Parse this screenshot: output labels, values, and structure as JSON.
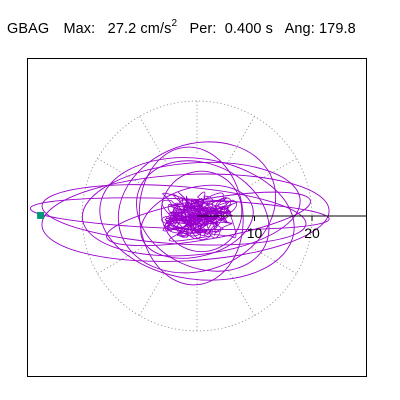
{
  "header": {
    "station": "GBAG",
    "max_label": "Max:",
    "max_value": "27.2 cm/s",
    "max_unit_exponent": "2",
    "per_label": "Per:",
    "per_value": "0.400 s",
    "ang_label": "Ang:",
    "ang_value": "179.8"
  },
  "colors": {
    "trace": "#9900cc",
    "marker": "#009977",
    "axis": "#000000",
    "guide": "#888888",
    "frame": "#000000"
  },
  "chart_data": {
    "type": "scatter",
    "description_mode": "polar particle-motion (orbit) plot of horizontal ground acceleration",
    "units": "cm/s^2",
    "tick_labels": [
      "10",
      "20"
    ],
    "ticks": [
      10,
      20
    ],
    "axis_range": [
      -30,
      30
    ],
    "guide_circle_radius": 20,
    "peak": {
      "value": 27.2,
      "angle_deg": 179.8
    },
    "orbit_ellipses": [
      {
        "a": 26,
        "b": 2.6,
        "tilt": -2,
        "cx": -3,
        "cy": 0.4
      },
      {
        "a": 25,
        "b": 7.5,
        "tilt": 3,
        "cx": -2,
        "cy": -0.3
      },
      {
        "a": 23,
        "b": 5.0,
        "tilt": -4,
        "cx": -4,
        "cy": 0.2
      },
      {
        "a": 19,
        "b": 8.0,
        "tilt": 5,
        "cx": -1,
        "cy": 1.2
      },
      {
        "a": 17,
        "b": 10.5,
        "tilt": -8,
        "cx": 0,
        "cy": -0.5
      },
      {
        "a": 14,
        "b": 11,
        "tilt": 20,
        "cx": 0,
        "cy": 1.5
      },
      {
        "a": 12,
        "b": 9,
        "tilt": -25,
        "cx": 1,
        "cy": 0
      },
      {
        "a": 10,
        "b": 6,
        "tilt": 15,
        "cx": 0,
        "cy": -1
      },
      {
        "a": 7,
        "b": 7,
        "tilt": 0,
        "cx": 0.8,
        "cy": 0.8
      },
      {
        "a": 18,
        "b": 3.5,
        "tilt": 10,
        "cx": 2,
        "cy": -0.5
      },
      {
        "a": 9,
        "b": 12,
        "tilt": 5,
        "cx": -1,
        "cy": 0
      }
    ]
  }
}
